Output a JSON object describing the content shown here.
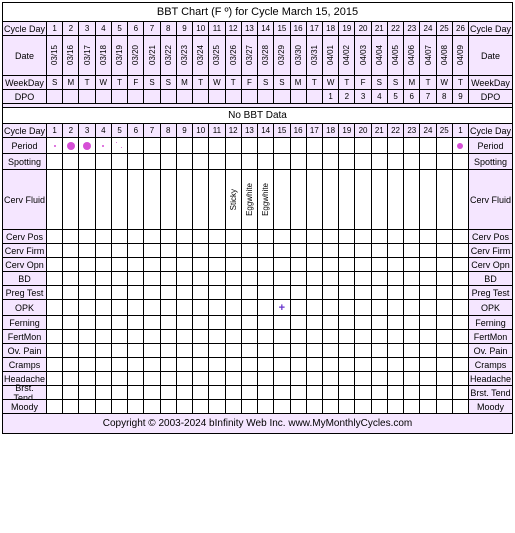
{
  "title": "BBT Chart (F º) for Cycle March 15, 2015",
  "colors": {
    "header_bg": "#f5e6ff",
    "border": "#000000",
    "period_dot": "#d64fd6",
    "opk_plus": "#6633cc"
  },
  "header_rows": [
    {
      "key": "cycleday1",
      "label": "Cycle Day",
      "height": 14,
      "cells": [
        "1",
        "2",
        "3",
        "4",
        "5",
        "6",
        "7",
        "8",
        "9",
        "10",
        "11",
        "12",
        "13",
        "14",
        "15",
        "16",
        "17",
        "18",
        "19",
        "20",
        "21",
        "22",
        "23",
        "24",
        "25",
        "26"
      ]
    },
    {
      "key": "date",
      "label": "Date",
      "height": 40,
      "vertical": true,
      "cells": [
        "03/15",
        "03/16",
        "03/17",
        "03/18",
        "03/19",
        "03/20",
        "03/21",
        "03/22",
        "03/23",
        "03/24",
        "03/25",
        "03/26",
        "03/27",
        "03/28",
        "03/29",
        "03/30",
        "03/31",
        "04/01",
        "04/02",
        "04/03",
        "04/04",
        "04/05",
        "04/06",
        "04/07",
        "04/08",
        "04/09"
      ]
    },
    {
      "key": "weekday",
      "label": "WeekDay",
      "height": 14,
      "cells": [
        "S",
        "M",
        "T",
        "W",
        "T",
        "F",
        "S",
        "S",
        "M",
        "T",
        "W",
        "T",
        "F",
        "S",
        "S",
        "M",
        "T",
        "W",
        "T",
        "F",
        "S",
        "S",
        "M",
        "T",
        "W",
        "T"
      ]
    },
    {
      "key": "dpo",
      "label": "DPO",
      "height": 14,
      "cells": [
        "",
        "",
        "",
        "",
        "",
        "",
        "",
        "",
        "",
        "",
        "",
        "",
        "",
        "",
        "",
        "",
        "",
        "1",
        "2",
        "3",
        "4",
        "5",
        "6",
        "7",
        "8",
        "9"
      ]
    }
  ],
  "no_bbt_label": "No BBT Data",
  "cycleday2": {
    "label": "Cycle Day",
    "cells": [
      "1",
      "2",
      "3",
      "4",
      "5",
      "6",
      "7",
      "8",
      "9",
      "10",
      "11",
      "12",
      "13",
      "14",
      "15",
      "16",
      "17",
      "18",
      "19",
      "20",
      "21",
      "22",
      "23",
      "24",
      "25",
      "1"
    ]
  },
  "data_rows": [
    {
      "key": "period",
      "label": "Period",
      "height": 16,
      "marks": {
        "0": "dot-small",
        "1": "dot-large",
        "2": "dot-large",
        "3": "dot-small",
        "4": "two-tiny",
        "25": "dot-med"
      }
    },
    {
      "key": "spotting",
      "label": "Spotting",
      "height": 16,
      "marks": {}
    },
    {
      "key": "cervfluid",
      "label": "Cerv Fluid",
      "height": 60,
      "vertical": true,
      "text": {
        "11": "Sticky",
        "12": "Eggwhite",
        "13": "Eggwhite"
      }
    },
    {
      "key": "cervpos",
      "label": "Cerv Pos",
      "height": 14,
      "marks": {}
    },
    {
      "key": "cervfirm",
      "label": "Cerv Firm",
      "height": 14,
      "marks": {}
    },
    {
      "key": "cervopn",
      "label": "Cerv Opn",
      "height": 14,
      "marks": {}
    },
    {
      "key": "bd",
      "label": "BD",
      "height": 14,
      "marks": {}
    },
    {
      "key": "pregtest",
      "label": "Preg Test",
      "height": 14,
      "marks": {}
    },
    {
      "key": "opk",
      "label": "OPK",
      "height": 16,
      "marks": {
        "14": "plus"
      }
    },
    {
      "key": "ferning",
      "label": "Ferning",
      "height": 14,
      "marks": {}
    },
    {
      "key": "fertmon",
      "label": "FertMon",
      "height": 14,
      "marks": {}
    },
    {
      "key": "ovpain",
      "label": "Ov. Pain",
      "height": 14,
      "marks": {}
    },
    {
      "key": "cramps",
      "label": "Cramps",
      "height": 14,
      "marks": {}
    },
    {
      "key": "headache",
      "label": "Headache",
      "height": 14,
      "marks": {}
    },
    {
      "key": "brsttend",
      "label": "Brst. Tend.",
      "right_label": "Brst. Tend",
      "height": 14,
      "marks": {}
    },
    {
      "key": "moody",
      "label": "Moody",
      "height": 14,
      "marks": {}
    }
  ],
  "num_cols": 26,
  "footer": "Copyright © 2003-2024 bInfinity Web Inc.    www.MyMonthlyCycles.com"
}
